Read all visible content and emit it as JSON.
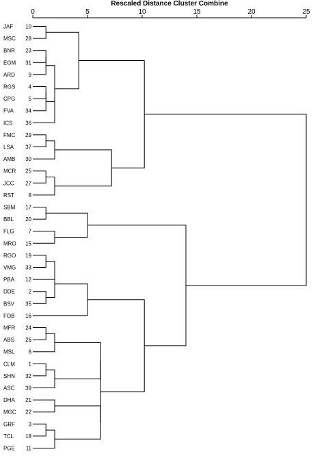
{
  "chart_data": {
    "type": "dendrogram",
    "title": "Rescaled Distance Cluster Combine",
    "axis": {
      "min": 0,
      "max": 25,
      "ticks": [
        0,
        5,
        10,
        15,
        20,
        25
      ]
    },
    "leaves": [
      {
        "name": "JAF",
        "id": "10"
      },
      {
        "name": "MSC",
        "id": "28"
      },
      {
        "name": "BNR",
        "id": "23"
      },
      {
        "name": "EGM",
        "id": "31"
      },
      {
        "name": "ARD",
        "id": "9"
      },
      {
        "name": "RGS",
        "id": "4"
      },
      {
        "name": "CPG",
        "id": "5"
      },
      {
        "name": "FVA",
        "id": "34"
      },
      {
        "name": "ICS",
        "id": "36"
      },
      {
        "name": "FMC",
        "id": "29"
      },
      {
        "name": "LSA",
        "id": "37"
      },
      {
        "name": "AMB",
        "id": "30"
      },
      {
        "name": "MCR",
        "id": "25"
      },
      {
        "name": "JCC",
        "id": "27"
      },
      {
        "name": "RST",
        "id": "8"
      },
      {
        "name": "SBM",
        "id": "17"
      },
      {
        "name": "BBL",
        "id": "20"
      },
      {
        "name": "FLG",
        "id": "7"
      },
      {
        "name": "MRO",
        "id": "15"
      },
      {
        "name": "RGO",
        "id": "19"
      },
      {
        "name": "VMG",
        "id": "33"
      },
      {
        "name": "PBA",
        "id": "12"
      },
      {
        "name": "DDE",
        "id": "2"
      },
      {
        "name": "BSV",
        "id": "35"
      },
      {
        "name": "FOB",
        "id": "16"
      },
      {
        "name": "MFR",
        "id": "24"
      },
      {
        "name": "ABS",
        "id": "26"
      },
      {
        "name": "MSL",
        "id": "6"
      },
      {
        "name": "CLM",
        "id": "1"
      },
      {
        "name": "SHN",
        "id": "32"
      },
      {
        "name": "ASC",
        "id": "39"
      },
      {
        "name": "DHA",
        "id": "21"
      },
      {
        "name": "MGC",
        "id": "22"
      },
      {
        "name": "GRF",
        "id": "3"
      },
      {
        "name": "TCL",
        "id": "18"
      },
      {
        "name": "PGE",
        "id": "11"
      }
    ],
    "merges": [
      {
        "a": "L0",
        "b": "L1",
        "d": 1.2
      },
      {
        "a": "L2",
        "b": "L3",
        "d": 1.2
      },
      {
        "a": "M1",
        "b": "L4",
        "d": 1.2
      },
      {
        "a": "L5",
        "b": "L6",
        "d": 1.2
      },
      {
        "a": "M3",
        "b": "L7",
        "d": 1.2
      },
      {
        "a": "M4",
        "b": "L8",
        "d": 2.0
      },
      {
        "a": "M2",
        "b": "M5",
        "d": 2.0
      },
      {
        "a": "M0",
        "b": "M6",
        "d": 4.2
      },
      {
        "a": "L9",
        "b": "L10",
        "d": 1.2
      },
      {
        "a": "M8",
        "b": "L11",
        "d": 2.0
      },
      {
        "a": "L12",
        "b": "L13",
        "d": 1.2
      },
      {
        "a": "M10",
        "b": "L14",
        "d": 2.0
      },
      {
        "a": "M9",
        "b": "M11",
        "d": 7.2
      },
      {
        "a": "M7",
        "b": "M12",
        "d": 10.2
      },
      {
        "a": "L15",
        "b": "L16",
        "d": 1.2
      },
      {
        "a": "L17",
        "b": "L18",
        "d": 2.0
      },
      {
        "a": "M14",
        "b": "M15",
        "d": 5.0
      },
      {
        "a": "L19",
        "b": "L20",
        "d": 1.2
      },
      {
        "a": "M17",
        "b": "L21",
        "d": 2.0
      },
      {
        "a": "L22",
        "b": "L23",
        "d": 1.2
      },
      {
        "a": "M18",
        "b": "M19",
        "d": 2.0
      },
      {
        "a": "M20",
        "b": "L24",
        "d": 5.0
      },
      {
        "a": "L25",
        "b": "L26",
        "d": 1.2
      },
      {
        "a": "M22",
        "b": "L27",
        "d": 2.0
      },
      {
        "a": "L28",
        "b": "L29",
        "d": 1.2
      },
      {
        "a": "M24",
        "b": "L30",
        "d": 2.0
      },
      {
        "a": "M23",
        "b": "M25",
        "d": 6.2
      },
      {
        "a": "L31",
        "b": "L32",
        "d": 2.0
      },
      {
        "a": "L33",
        "b": "L34",
        "d": 1.2
      },
      {
        "a": "M28",
        "b": "L35",
        "d": 2.0
      },
      {
        "a": "M27",
        "b": "M29",
        "d": 6.2
      },
      {
        "a": "M26",
        "b": "M30",
        "d": 6.2
      },
      {
        "a": "M21",
        "b": "M31",
        "d": 10.2
      },
      {
        "a": "M16",
        "b": "M32",
        "d": 14.0
      },
      {
        "a": "M13",
        "b": "M33",
        "d": 25.0
      }
    ]
  }
}
